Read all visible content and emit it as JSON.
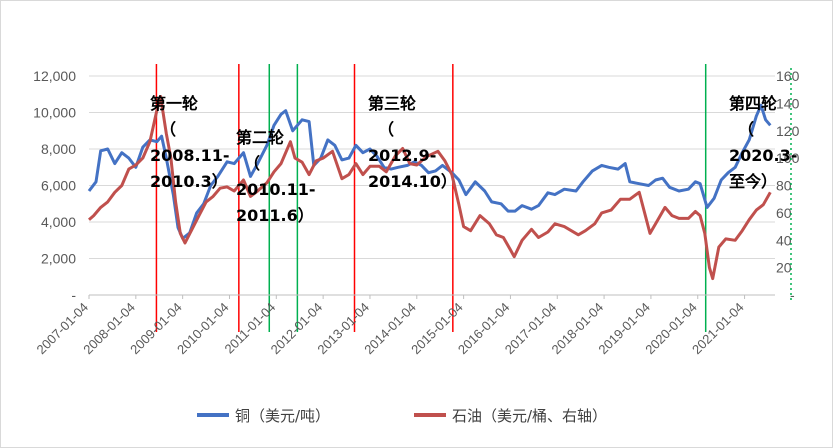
{
  "chart_data": {
    "type": "line",
    "y_left": {
      "ylim": [
        0,
        12000
      ],
      "ticks": [
        "12,000",
        "10,000",
        "8,000",
        "6,000",
        "4,000",
        "2,000",
        "-"
      ]
    },
    "y_right": {
      "ylim": [
        0,
        160
      ],
      "ticks": [
        "160",
        "140",
        "120",
        "100",
        "80",
        "60",
        "40",
        "20",
        "-"
      ]
    },
    "x_ticks": [
      "2007-01-04",
      "2008-01-04",
      "2009-01-04",
      "2010-01-04",
      "2011-01-04",
      "2012-01-04",
      "2013-01-04",
      "2014-01-04",
      "2015-01-04",
      "2016-01-04",
      "2017-01-04",
      "2018-01-04",
      "2019-01-04",
      "2020-01-04",
      "2021-01-04"
    ],
    "legend_position": "bottom",
    "grid": "horizontal",
    "series": [
      {
        "name": "铜（美元/吨）",
        "axis": "left",
        "color": "#4472c4",
        "points": [
          [
            2007.0,
            5700
          ],
          [
            2007.15,
            6200
          ],
          [
            2007.25,
            7900
          ],
          [
            2007.4,
            8000
          ],
          [
            2007.55,
            7200
          ],
          [
            2007.7,
            7800
          ],
          [
            2007.85,
            7500
          ],
          [
            2008.0,
            7000
          ],
          [
            2008.15,
            8100
          ],
          [
            2008.3,
            8500
          ],
          [
            2008.45,
            8400
          ],
          [
            2008.55,
            8700
          ],
          [
            2008.65,
            7500
          ],
          [
            2008.8,
            5500
          ],
          [
            2008.9,
            3700
          ],
          [
            2009.0,
            3100
          ],
          [
            2009.15,
            3400
          ],
          [
            2009.3,
            4500
          ],
          [
            2009.45,
            5000
          ],
          [
            2009.6,
            6000
          ],
          [
            2009.75,
            6500
          ],
          [
            2009.95,
            7300
          ],
          [
            2010.1,
            7200
          ],
          [
            2010.3,
            7800
          ],
          [
            2010.45,
            6500
          ],
          [
            2010.6,
            7200
          ],
          [
            2010.8,
            8200
          ],
          [
            2010.95,
            9300
          ],
          [
            2011.1,
            9900
          ],
          [
            2011.2,
            10100
          ],
          [
            2011.35,
            9000
          ],
          [
            2011.55,
            9600
          ],
          [
            2011.7,
            9500
          ],
          [
            2011.8,
            7100
          ],
          [
            2011.95,
            7500
          ],
          [
            2012.1,
            8500
          ],
          [
            2012.25,
            8200
          ],
          [
            2012.4,
            7400
          ],
          [
            2012.55,
            7500
          ],
          [
            2012.7,
            8200
          ],
          [
            2012.85,
            7800
          ],
          [
            2013.0,
            8000
          ],
          [
            2013.15,
            7600
          ],
          [
            2013.3,
            7000
          ],
          [
            2013.45,
            6900
          ],
          [
            2013.6,
            7000
          ],
          [
            2013.8,
            7100
          ],
          [
            2013.95,
            7300
          ],
          [
            2014.1,
            7100
          ],
          [
            2014.25,
            6700
          ],
          [
            2014.4,
            6800
          ],
          [
            2014.55,
            7100
          ],
          [
            2014.75,
            6700
          ],
          [
            2014.9,
            6300
          ],
          [
            2015.05,
            5500
          ],
          [
            2015.25,
            6200
          ],
          [
            2015.45,
            5700
          ],
          [
            2015.6,
            5100
          ],
          [
            2015.8,
            5000
          ],
          [
            2015.95,
            4600
          ],
          [
            2016.1,
            4600
          ],
          [
            2016.25,
            4900
          ],
          [
            2016.45,
            4700
          ],
          [
            2016.6,
            4900
          ],
          [
            2016.8,
            5600
          ],
          [
            2016.95,
            5500
          ],
          [
            2017.15,
            5800
          ],
          [
            2017.4,
            5700
          ],
          [
            2017.55,
            6200
          ],
          [
            2017.75,
            6800
          ],
          [
            2017.95,
            7100
          ],
          [
            2018.1,
            7000
          ],
          [
            2018.3,
            6900
          ],
          [
            2018.45,
            7200
          ],
          [
            2018.55,
            6200
          ],
          [
            2018.75,
            6100
          ],
          [
            2018.95,
            6000
          ],
          [
            2019.1,
            6300
          ],
          [
            2019.25,
            6400
          ],
          [
            2019.4,
            5900
          ],
          [
            2019.6,
            5700
          ],
          [
            2019.8,
            5800
          ],
          [
            2019.95,
            6200
          ],
          [
            2020.05,
            6100
          ],
          [
            2020.2,
            4800
          ],
          [
            2020.35,
            5300
          ],
          [
            2020.5,
            6300
          ],
          [
            2020.65,
            6700
          ],
          [
            2020.8,
            7000
          ],
          [
            2020.95,
            7800
          ],
          [
            2021.1,
            8500
          ],
          [
            2021.25,
            9800
          ],
          [
            2021.35,
            10400
          ],
          [
            2021.45,
            9600
          ],
          [
            2021.55,
            9300
          ]
        ]
      },
      {
        "name": "石油（美元/桶、右轴）",
        "axis": "right",
        "color": "#c0504d",
        "points": [
          [
            2007.0,
            55
          ],
          [
            2007.1,
            58
          ],
          [
            2007.25,
            64
          ],
          [
            2007.4,
            68
          ],
          [
            2007.55,
            75
          ],
          [
            2007.7,
            80
          ],
          [
            2007.85,
            92
          ],
          [
            2008.0,
            95
          ],
          [
            2008.15,
            100
          ],
          [
            2008.3,
            112
          ],
          [
            2008.45,
            135
          ],
          [
            2008.53,
            145
          ],
          [
            2008.65,
            118
          ],
          [
            2008.75,
            100
          ],
          [
            2008.85,
            68
          ],
          [
            2008.95,
            45
          ],
          [
            2009.05,
            38
          ],
          [
            2009.2,
            48
          ],
          [
            2009.35,
            58
          ],
          [
            2009.5,
            68
          ],
          [
            2009.65,
            72
          ],
          [
            2009.8,
            78
          ],
          [
            2009.95,
            79
          ],
          [
            2010.1,
            76
          ],
          [
            2010.3,
            84
          ],
          [
            2010.45,
            72
          ],
          [
            2010.6,
            76
          ],
          [
            2010.8,
            82
          ],
          [
            2010.95,
            90
          ],
          [
            2011.1,
            96
          ],
          [
            2011.3,
            112
          ],
          [
            2011.4,
            100
          ],
          [
            2011.55,
            97
          ],
          [
            2011.7,
            88
          ],
          [
            2011.85,
            98
          ],
          [
            2012.0,
            100
          ],
          [
            2012.2,
            105
          ],
          [
            2012.4,
            85
          ],
          [
            2012.55,
            88
          ],
          [
            2012.7,
            96
          ],
          [
            2012.85,
            88
          ],
          [
            2013.0,
            94
          ],
          [
            2013.2,
            94
          ],
          [
            2013.35,
            90
          ],
          [
            2013.55,
            102
          ],
          [
            2013.7,
            107
          ],
          [
            2013.85,
            96
          ],
          [
            2014.0,
            95
          ],
          [
            2014.2,
            101
          ],
          [
            2014.45,
            105
          ],
          [
            2014.6,
            98
          ],
          [
            2014.75,
            88
          ],
          [
            2014.9,
            66
          ],
          [
            2015.0,
            50
          ],
          [
            2015.15,
            47
          ],
          [
            2015.35,
            58
          ],
          [
            2015.55,
            52
          ],
          [
            2015.7,
            44
          ],
          [
            2015.85,
            42
          ],
          [
            2016.0,
            33
          ],
          [
            2016.08,
            28
          ],
          [
            2016.25,
            40
          ],
          [
            2016.45,
            48
          ],
          [
            2016.6,
            42
          ],
          [
            2016.8,
            46
          ],
          [
            2016.95,
            52
          ],
          [
            2017.15,
            50
          ],
          [
            2017.45,
            44
          ],
          [
            2017.6,
            47
          ],
          [
            2017.8,
            52
          ],
          [
            2017.95,
            60
          ],
          [
            2018.15,
            62
          ],
          [
            2018.35,
            70
          ],
          [
            2018.55,
            70
          ],
          [
            2018.75,
            75
          ],
          [
            2018.85,
            62
          ],
          [
            2018.98,
            45
          ],
          [
            2019.1,
            52
          ],
          [
            2019.3,
            64
          ],
          [
            2019.45,
            58
          ],
          [
            2019.6,
            56
          ],
          [
            2019.8,
            56
          ],
          [
            2019.95,
            61
          ],
          [
            2020.05,
            58
          ],
          [
            2020.15,
            45
          ],
          [
            2020.25,
            20
          ],
          [
            2020.32,
            12
          ],
          [
            2020.45,
            35
          ],
          [
            2020.6,
            41
          ],
          [
            2020.8,
            40
          ],
          [
            2020.95,
            47
          ],
          [
            2021.1,
            55
          ],
          [
            2021.25,
            62
          ],
          [
            2021.4,
            66
          ],
          [
            2021.55,
            75
          ]
        ]
      }
    ],
    "markers": [
      {
        "year": 2008.44,
        "color": "#ff0000"
      },
      {
        "year": 2010.2,
        "color": "#ff0000"
      },
      {
        "year": 2010.85,
        "color": "#00b050"
      },
      {
        "year": 2011.45,
        "color": "#00b050"
      },
      {
        "year": 2012.67,
        "color": "#ff0000"
      },
      {
        "year": 2014.77,
        "color": "#ff0000"
      },
      {
        "year": 2020.17,
        "color": "#00b050"
      }
    ],
    "annotations": [
      {
        "lines": [
          "第一轮",
          "（",
          "2008.11-",
          "2010.3）"
        ]
      },
      {
        "lines": [
          "第二轮",
          "（",
          "2010.11-",
          "2011.6）"
        ]
      },
      {
        "lines": [
          "第三轮",
          "（",
          "2012.9-",
          "2014.10）"
        ]
      },
      {
        "lines": [
          "第四轮",
          "（",
          "2020.3-",
          "至今）"
        ]
      }
    ]
  }
}
